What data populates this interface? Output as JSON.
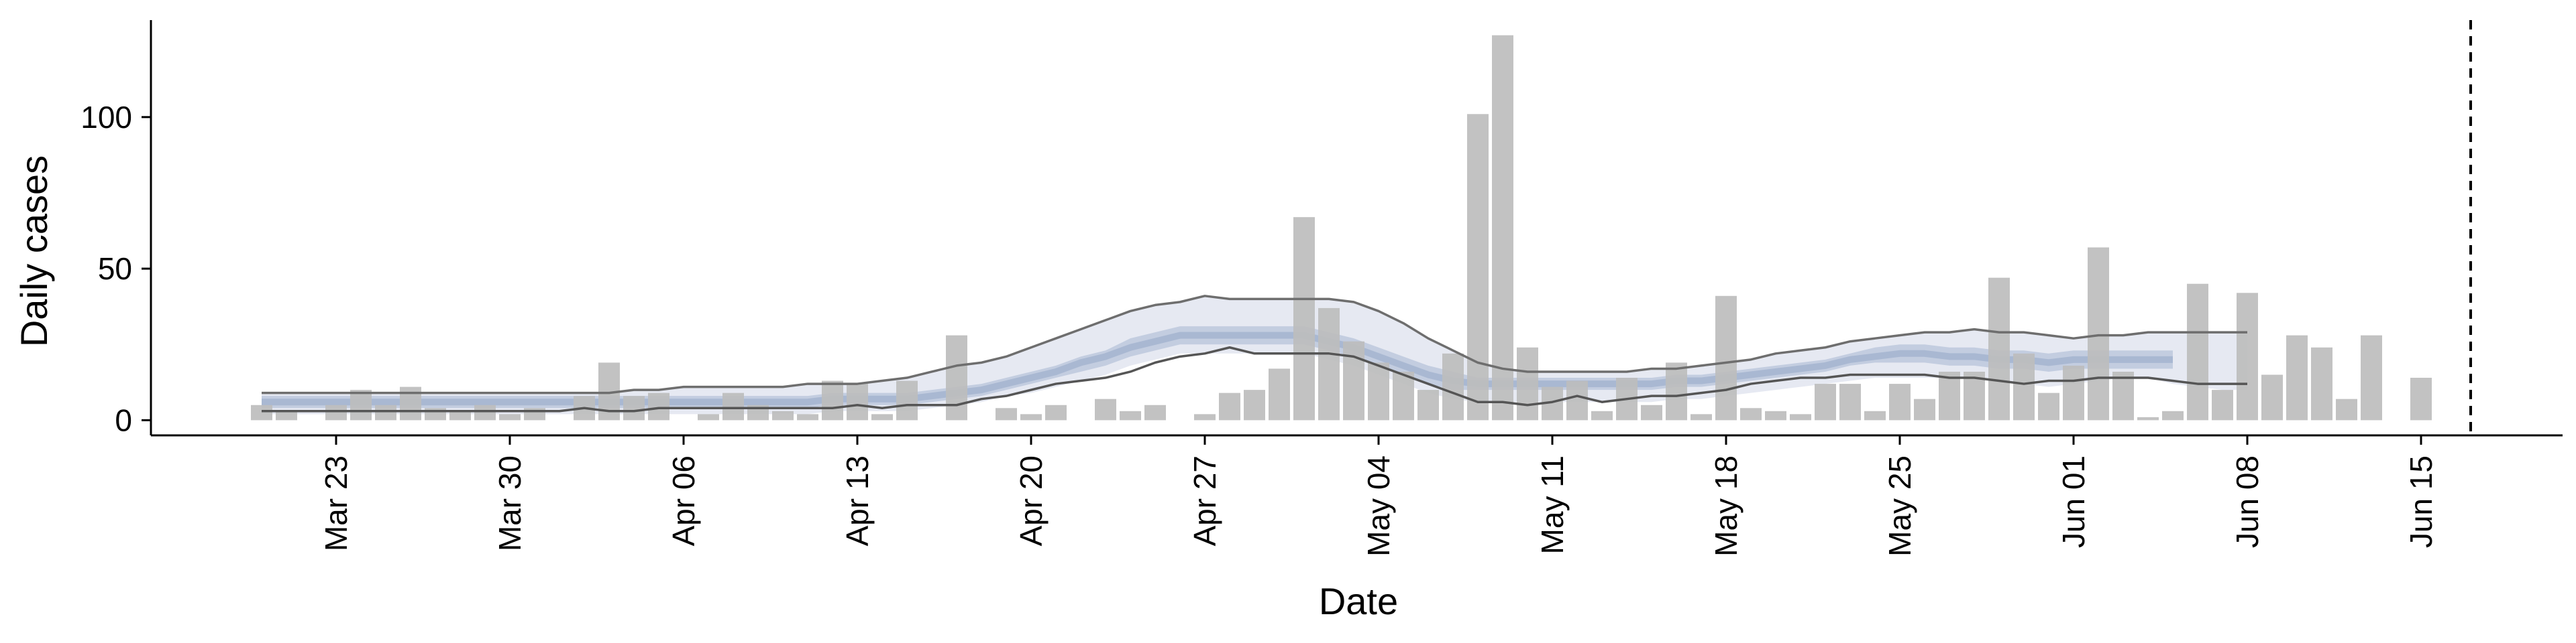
{
  "chart_data": {
    "type": "bar",
    "title": "",
    "xlabel": "Date",
    "ylabel": "Daily cases",
    "grid": false,
    "legend": "none",
    "x_start": "2020-03-20",
    "ylim": [
      -5,
      132
    ],
    "y_ticks": [
      0,
      50,
      100
    ],
    "x_ticks": [
      {
        "date": "2020-03-23",
        "label": "Mar 23"
      },
      {
        "date": "2020-03-30",
        "label": "Mar 30"
      },
      {
        "date": "2020-04-06",
        "label": "Apr 06"
      },
      {
        "date": "2020-04-13",
        "label": "Apr 13"
      },
      {
        "date": "2020-04-20",
        "label": "Apr 20"
      },
      {
        "date": "2020-04-27",
        "label": "Apr 27"
      },
      {
        "date": "2020-05-04",
        "label": "May 04"
      },
      {
        "date": "2020-05-11",
        "label": "May 11"
      },
      {
        "date": "2020-05-18",
        "label": "May 18"
      },
      {
        "date": "2020-05-25",
        "label": "May 25"
      },
      {
        "date": "2020-06-01",
        "label": "Jun 01"
      },
      {
        "date": "2020-06-08",
        "label": "Jun 08"
      },
      {
        "date": "2020-06-15",
        "label": "Jun 15"
      }
    ],
    "reference_line_date": "2020-06-17",
    "series": [
      {
        "kind": "bars",
        "values": [
          5,
          3,
          0,
          5,
          10,
          5,
          11,
          4,
          3,
          5,
          2,
          4,
          0,
          8,
          19,
          8,
          9,
          0,
          2,
          9,
          5,
          3,
          2,
          13,
          12,
          2,
          13,
          0,
          28,
          0,
          4,
          2,
          5,
          0,
          7,
          3,
          5,
          0,
          2,
          9,
          10,
          17,
          67,
          37,
          26,
          19,
          16,
          10,
          22,
          101,
          127,
          24,
          11,
          13,
          3,
          14,
          5,
          19,
          2,
          41,
          4,
          3,
          2,
          12,
          12,
          3,
          12,
          7,
          16,
          16,
          47,
          22,
          9,
          18,
          57,
          16,
          1,
          3,
          45,
          10,
          42,
          15,
          28,
          24,
          7,
          28,
          0,
          14
        ],
        "color": "#bdbdbd"
      },
      {
        "kind": "median",
        "values": [
          6,
          6,
          6,
          6,
          6,
          6,
          6,
          6,
          6,
          6,
          6,
          6,
          6,
          6,
          6,
          6,
          6,
          6,
          6,
          6,
          6,
          6,
          6,
          7,
          7,
          7,
          7,
          8,
          9,
          10,
          12,
          14,
          16,
          19,
          21,
          24,
          26,
          28,
          28,
          28,
          28,
          28,
          28,
          26,
          24,
          21,
          18,
          15,
          13,
          12,
          12,
          12,
          12,
          12,
          12,
          12,
          12,
          13,
          13,
          14,
          15,
          16,
          17,
          18,
          20,
          21,
          22,
          22,
          21,
          21,
          20,
          20,
          19,
          20,
          20,
          20,
          20,
          20
        ],
        "color": "#a9b8d2"
      },
      {
        "kind": "inner_band",
        "upper": [
          8,
          8,
          8,
          8,
          8,
          8,
          8,
          8,
          8,
          8,
          8,
          8,
          8,
          8,
          8,
          8,
          8,
          8,
          8,
          8,
          8,
          8,
          8,
          9,
          9,
          9,
          9,
          10,
          11,
          12,
          14,
          16,
          18,
          21,
          23,
          27,
          29,
          31,
          31,
          31,
          31,
          31,
          31,
          29,
          27,
          24,
          21,
          18,
          16,
          14,
          14,
          14,
          14,
          14,
          14,
          14,
          14,
          15,
          15,
          16,
          17,
          18,
          19,
          20,
          22,
          24,
          25,
          25,
          24,
          24,
          23,
          23,
          22,
          23,
          23,
          23,
          23,
          23
        ],
        "lower": [
          4,
          4,
          4,
          4,
          4,
          4,
          4,
          4,
          4,
          4,
          4,
          4,
          4,
          4,
          4,
          4,
          4,
          4,
          4,
          4,
          4,
          4,
          4,
          5,
          5,
          5,
          5,
          6,
          7,
          8,
          10,
          12,
          14,
          16,
          18,
          21,
          23,
          25,
          25,
          25,
          25,
          25,
          25,
          23,
          21,
          18,
          15,
          12,
          10,
          10,
          10,
          10,
          10,
          10,
          10,
          10,
          10,
          11,
          11,
          12,
          13,
          14,
          15,
          16,
          18,
          19,
          19,
          19,
          18,
          18,
          17,
          17,
          16,
          17,
          17,
          17,
          17,
          17
        ],
        "color": "#c3cde0"
      },
      {
        "kind": "outer_band",
        "upper": [
          9,
          9,
          9,
          9,
          9,
          9,
          9,
          9,
          9,
          9,
          9,
          9,
          9,
          9,
          9,
          10,
          10,
          11,
          11,
          11,
          11,
          11,
          12,
          12,
          12,
          13,
          14,
          16,
          18,
          19,
          21,
          24,
          27,
          30,
          33,
          36,
          38,
          39,
          41,
          40,
          40,
          40,
          40,
          40,
          39,
          36,
          32,
          27,
          23,
          19,
          17,
          16,
          16,
          16,
          16,
          16,
          17,
          17,
          18,
          19,
          20,
          22,
          23,
          24,
          26,
          27,
          28,
          29,
          29,
          30,
          29,
          29,
          28,
          27,
          28,
          28,
          29,
          29,
          29,
          29,
          29
        ],
        "lower": [
          2,
          2,
          2,
          2,
          2,
          2,
          2,
          2,
          2,
          2,
          2,
          2,
          2,
          2,
          2,
          2,
          2,
          2,
          2,
          2,
          2,
          2,
          2,
          3,
          3,
          3,
          3,
          4,
          5,
          6,
          8,
          9,
          11,
          13,
          15,
          18,
          20,
          22,
          22,
          22,
          22,
          22,
          22,
          20,
          18,
          15,
          12,
          9,
          7,
          6,
          6,
          6,
          6,
          6,
          6,
          6,
          6,
          7,
          7,
          8,
          9,
          10,
          11,
          12,
          13,
          14,
          14,
          14,
          14,
          14,
          13,
          12,
          11,
          12,
          13,
          14,
          14,
          12,
          11,
          10,
          10
        ],
        "color": "#e6e9f2"
      },
      {
        "kind": "outer_band_upper_line",
        "values": [
          9,
          9,
          9,
          9,
          9,
          9,
          9,
          9,
          9,
          9,
          9,
          9,
          9,
          9,
          9,
          10,
          10,
          11,
          11,
          11,
          11,
          11,
          12,
          12,
          12,
          13,
          14,
          16,
          18,
          19,
          21,
          24,
          27,
          30,
          33,
          36,
          38,
          39,
          41,
          40,
          40,
          40,
          40,
          40,
          39,
          36,
          32,
          27,
          23,
          19,
          17,
          16,
          16,
          16,
          16,
          16,
          17,
          17,
          18,
          19,
          20,
          22,
          23,
          24,
          26,
          27,
          28,
          29,
          29,
          30,
          29,
          29,
          28,
          27,
          28,
          28,
          29,
          29,
          29,
          29,
          29
        ],
        "color": "#6e6e6e"
      },
      {
        "kind": "outer_band_lower_line",
        "values": [
          3,
          3,
          3,
          3,
          3,
          3,
          3,
          3,
          3,
          3,
          3,
          3,
          3,
          4,
          3,
          3,
          4,
          4,
          4,
          4,
          4,
          4,
          4,
          4,
          5,
          4,
          5,
          5,
          5,
          7,
          8,
          10,
          12,
          13,
          14,
          16,
          19,
          21,
          22,
          24,
          22,
          22,
          22,
          22,
          21,
          18,
          15,
          12,
          9,
          6,
          6,
          5,
          6,
          8,
          6,
          7,
          8,
          8,
          9,
          10,
          12,
          13,
          14,
          14,
          15,
          15,
          15,
          15,
          14,
          14,
          13,
          12,
          13,
          13,
          14,
          14,
          14,
          13,
          12,
          12,
          12
        ],
        "color": "#555555"
      }
    ]
  }
}
